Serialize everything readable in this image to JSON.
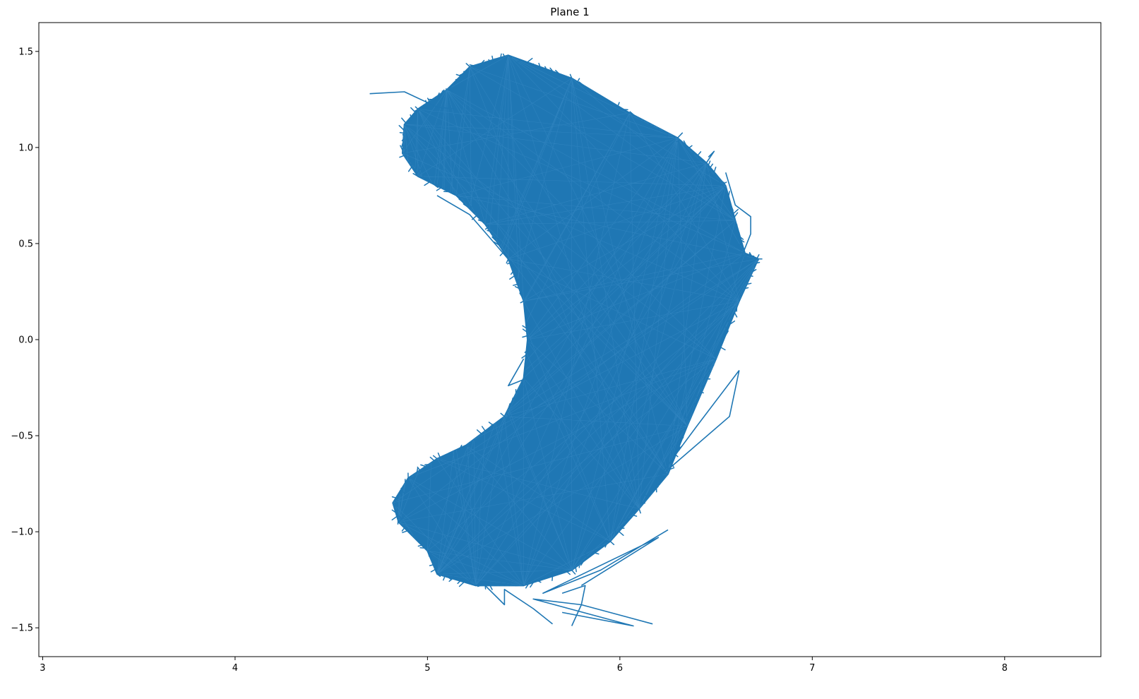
{
  "chart_data": {
    "type": "line",
    "title": "Plane 1",
    "xlabel": "",
    "ylabel": "",
    "xlim": [
      2.98,
      8.5
    ],
    "ylim": [
      -1.65,
      1.65
    ],
    "xticks": [
      3,
      4,
      5,
      6,
      7,
      8
    ],
    "yticks": [
      -1.5,
      -1.0,
      -0.5,
      0.0,
      0.5,
      1.0,
      1.5
    ],
    "xtick_labels": [
      "3",
      "4",
      "5",
      "6",
      "7",
      "8"
    ],
    "ytick_labels": [
      "−1.5",
      "−1.0",
      "−0.5",
      "0.0",
      "0.5",
      "1.0",
      "1.5"
    ],
    "grid": false,
    "legend": "none",
    "line_color": "#1f77b4",
    "series": [
      {
        "outline": [
          [
            5.42,
            1.48
          ],
          [
            5.75,
            1.36
          ],
          [
            6.05,
            1.18
          ],
          [
            6.3,
            1.05
          ],
          [
            6.45,
            0.92
          ],
          [
            6.55,
            0.8
          ],
          [
            6.6,
            0.62
          ],
          [
            6.65,
            0.45
          ],
          [
            6.72,
            0.42
          ],
          [
            6.62,
            0.2
          ],
          [
            6.5,
            -0.1
          ],
          [
            6.35,
            -0.45
          ],
          [
            6.25,
            -0.7
          ],
          [
            6.1,
            -0.88
          ],
          [
            5.95,
            -1.05
          ],
          [
            5.75,
            -1.2
          ],
          [
            5.5,
            -1.28
          ],
          [
            5.25,
            -1.28
          ],
          [
            5.05,
            -1.22
          ],
          [
            5.0,
            -1.1
          ],
          [
            4.85,
            -0.95
          ],
          [
            4.82,
            -0.85
          ],
          [
            4.9,
            -0.72
          ],
          [
            5.05,
            -0.62
          ],
          [
            5.2,
            -0.55
          ],
          [
            5.4,
            -0.4
          ],
          [
            5.5,
            -0.2
          ],
          [
            5.52,
            0.0
          ],
          [
            5.5,
            0.2
          ],
          [
            5.42,
            0.42
          ],
          [
            5.3,
            0.6
          ],
          [
            5.15,
            0.75
          ],
          [
            4.95,
            0.85
          ],
          [
            4.87,
            0.97
          ],
          [
            4.88,
            1.12
          ],
          [
            4.95,
            1.2
          ],
          [
            5.1,
            1.3
          ],
          [
            5.22,
            1.42
          ]
        ]
      }
    ],
    "spurs": [
      [
        [
          4.7,
          1.28
        ],
        [
          4.88,
          1.29
        ],
        [
          5.05,
          1.21
        ],
        [
          5.15,
          1.2
        ]
      ],
      [
        [
          5.05,
          0.75
        ],
        [
          5.22,
          0.65
        ],
        [
          5.35,
          0.5
        ],
        [
          5.47,
          0.36
        ]
      ],
      [
        [
          5.52,
          -0.2
        ],
        [
          5.42,
          -0.24
        ],
        [
          5.5,
          -0.1
        ]
      ],
      [
        [
          6.55,
          0.87
        ],
        [
          6.6,
          0.7
        ],
        [
          6.68,
          0.64
        ],
        [
          6.68,
          0.55
        ],
        [
          6.62,
          0.4
        ]
      ],
      [
        [
          6.62,
          -0.16
        ],
        [
          6.4,
          -0.45
        ],
        [
          6.2,
          -0.72
        ],
        [
          6.57,
          -0.4
        ],
        [
          6.62,
          -0.16
        ]
      ],
      [
        [
          6.25,
          -0.99
        ],
        [
          5.9,
          -1.2
        ],
        [
          5.6,
          -1.32
        ],
        [
          6.2,
          -1.03
        ],
        [
          5.8,
          -1.28
        ]
      ],
      [
        [
          6.17,
          -1.48
        ],
        [
          5.8,
          -1.38
        ],
        [
          5.55,
          -1.35
        ],
        [
          6.07,
          -1.49
        ],
        [
          5.7,
          -1.42
        ]
      ],
      [
        [
          5.65,
          -1.48
        ],
        [
          5.55,
          -1.4
        ],
        [
          5.4,
          -1.3
        ],
        [
          5.4,
          -1.38
        ],
        [
          5.3,
          -1.28
        ]
      ],
      [
        [
          5.75,
          -1.49
        ],
        [
          5.8,
          -1.38
        ],
        [
          5.82,
          -1.28
        ],
        [
          5.7,
          -1.32
        ]
      ],
      [
        [
          6.45,
          0.92
        ],
        [
          6.49,
          0.98
        ],
        [
          6.46,
          0.95
        ]
      ]
    ]
  }
}
